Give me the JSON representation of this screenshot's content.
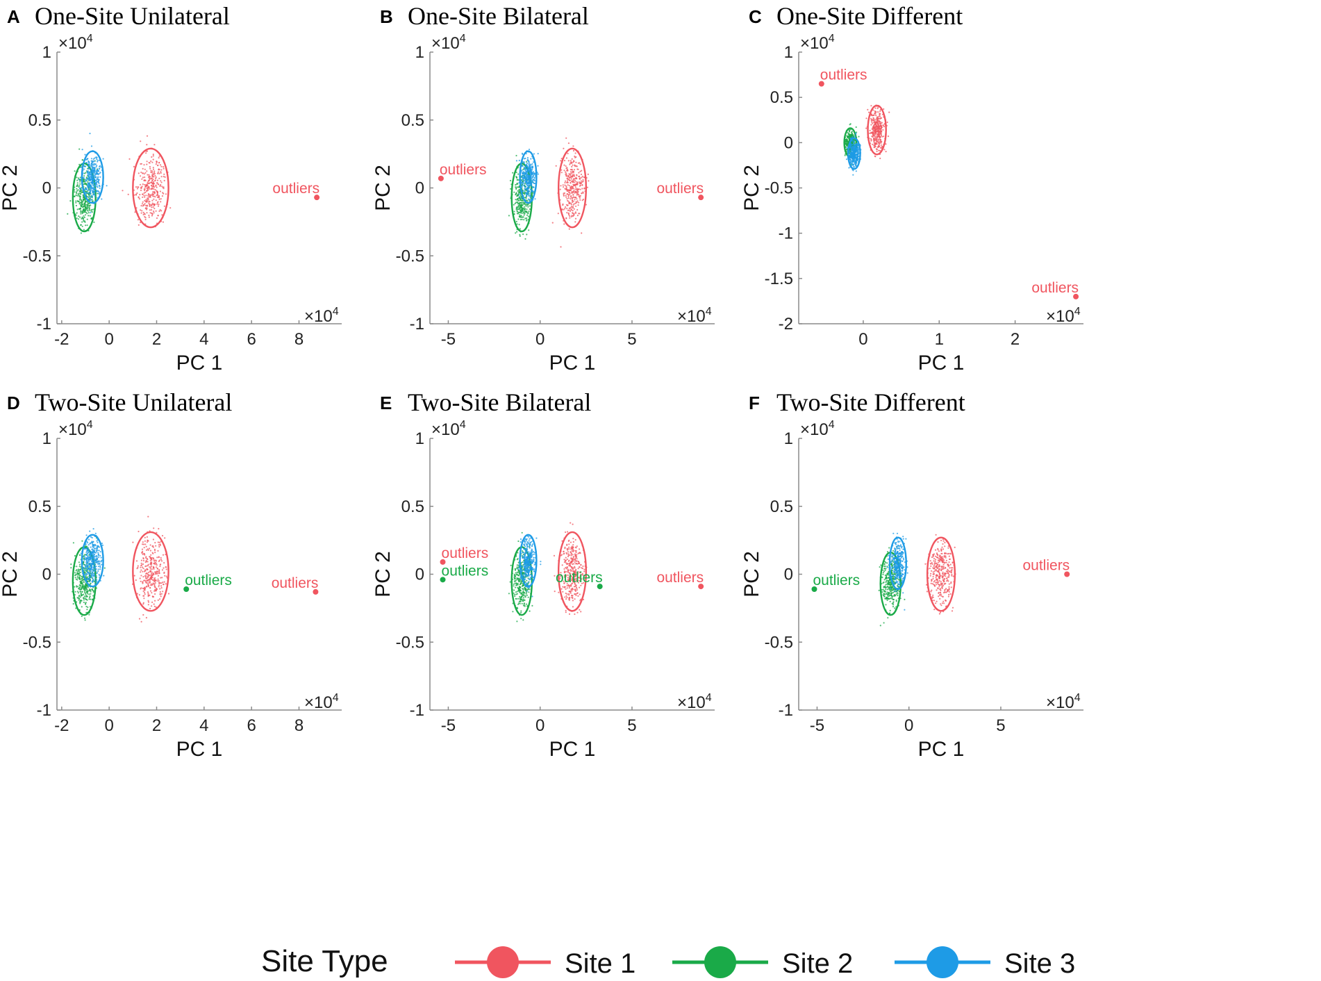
{
  "colors": {
    "site1": "#f0555f",
    "site2": "#1aaa48",
    "site3": "#1e9be6"
  },
  "legend": {
    "title": "Site Type",
    "items": [
      {
        "label": "Site 1",
        "color": "#f0555f"
      },
      {
        "label": "Site 2",
        "color": "#1aaa48"
      },
      {
        "label": "Site 3",
        "color": "#1e9be6"
      }
    ]
  },
  "chart_data": [
    {
      "type": "scatter",
      "letter": "A",
      "title": "One-Site Unilateral",
      "xlabel": "PC 1",
      "ylabel": "PC 2",
      "multiplier": "×10",
      "multiplier_exp": "4",
      "xlim": [
        -2.2,
        9.8
      ],
      "ylim": [
        -1,
        1
      ],
      "xticks": [
        -2,
        0,
        2,
        4,
        6,
        8
      ],
      "yticks": [
        -1,
        -0.5,
        0,
        0.5,
        1
      ],
      "clusters": [
        {
          "site": "Site 2",
          "cx": -1.05,
          "cy": -0.07,
          "rx": 0.48,
          "ry": 0.25,
          "color": "#1aaa48"
        },
        {
          "site": "Site 3",
          "cx": -0.7,
          "cy": 0.08,
          "rx": 0.45,
          "ry": 0.19,
          "color": "#1e9be6"
        },
        {
          "site": "Site 1",
          "cx": 1.75,
          "cy": 0.0,
          "rx": 0.75,
          "ry": 0.29,
          "color": "#f0555f"
        }
      ],
      "outliers": [
        {
          "x": 8.75,
          "y": -0.07,
          "label": "outliers",
          "color": "#f0555f"
        }
      ]
    },
    {
      "type": "scatter",
      "letter": "B",
      "title": "One-Site Bilateral",
      "xlabel": "PC 1",
      "ylabel": "PC 2",
      "multiplier": "×10",
      "multiplier_exp": "4",
      "xlim": [
        -6,
        9.5
      ],
      "ylim": [
        -1,
        1
      ],
      "xticks": [
        -5,
        0,
        5
      ],
      "yticks": [
        -1,
        -0.5,
        0,
        0.5,
        1
      ],
      "clusters": [
        {
          "site": "Site 2",
          "cx": -1.0,
          "cy": -0.07,
          "rx": 0.55,
          "ry": 0.25,
          "color": "#1aaa48"
        },
        {
          "site": "Site 3",
          "cx": -0.65,
          "cy": 0.08,
          "rx": 0.45,
          "ry": 0.19,
          "color": "#1e9be6"
        },
        {
          "site": "Site 1",
          "cx": 1.75,
          "cy": 0.0,
          "rx": 0.75,
          "ry": 0.29,
          "color": "#f0555f"
        }
      ],
      "outliers": [
        {
          "x": -5.4,
          "y": 0.07,
          "label": "outliers",
          "color": "#f0555f"
        },
        {
          "x": 8.75,
          "y": -0.07,
          "label": "outliers",
          "color": "#f0555f"
        }
      ]
    },
    {
      "type": "scatter",
      "letter": "C",
      "title": "One-Site Different",
      "xlabel": "PC 1",
      "ylabel": "PC 2",
      "multiplier": "×10",
      "multiplier_exp": "4",
      "xlim": [
        -0.85,
        2.9
      ],
      "ylim": [
        -2,
        1
      ],
      "xticks": [
        0,
        1,
        2
      ],
      "yticks": [
        -2,
        -1.5,
        -1,
        -0.5,
        0,
        0.5,
        1
      ],
      "clusters": [
        {
          "site": "Site 2",
          "cx": -0.17,
          "cy": 0.0,
          "rx": 0.08,
          "ry": 0.16,
          "color": "#1aaa48"
        },
        {
          "site": "Site 3",
          "cx": -0.12,
          "cy": -0.12,
          "rx": 0.08,
          "ry": 0.17,
          "color": "#1e9be6"
        },
        {
          "site": "Site 1",
          "cx": 0.18,
          "cy": 0.14,
          "rx": 0.12,
          "ry": 0.27,
          "color": "#f0555f"
        }
      ],
      "outliers": [
        {
          "x": -0.55,
          "y": 0.65,
          "label": "outliers",
          "color": "#f0555f"
        },
        {
          "x": 2.8,
          "y": -1.7,
          "label": "outliers",
          "color": "#f0555f"
        }
      ]
    },
    {
      "type": "scatter",
      "letter": "D",
      "title": "Two-Site Unilateral",
      "xlabel": "PC 1",
      "ylabel": "PC 2",
      "multiplier": "×10",
      "multiplier_exp": "4",
      "xlim": [
        -2.2,
        9.8
      ],
      "ylim": [
        -1,
        1
      ],
      "xticks": [
        -2,
        0,
        2,
        4,
        6,
        8
      ],
      "yticks": [
        -1,
        -0.5,
        0,
        0.5,
        1
      ],
      "clusters": [
        {
          "site": "Site 2",
          "cx": -1.05,
          "cy": -0.05,
          "rx": 0.48,
          "ry": 0.25,
          "color": "#1aaa48"
        },
        {
          "site": "Site 3",
          "cx": -0.7,
          "cy": 0.1,
          "rx": 0.45,
          "ry": 0.19,
          "color": "#1e9be6"
        },
        {
          "site": "Site 1",
          "cx": 1.75,
          "cy": 0.02,
          "rx": 0.75,
          "ry": 0.29,
          "color": "#f0555f"
        }
      ],
      "outliers": [
        {
          "x": 3.25,
          "y": -0.11,
          "label": "outliers",
          "color": "#1aaa48"
        },
        {
          "x": 8.7,
          "y": -0.13,
          "label": "outliers",
          "color": "#f0555f"
        }
      ]
    },
    {
      "type": "scatter",
      "letter": "E",
      "title": "Two-Site Bilateral",
      "xlabel": "PC 1",
      "ylabel": "PC 2",
      "multiplier": "×10",
      "multiplier_exp": "4",
      "xlim": [
        -6,
        9.5
      ],
      "ylim": [
        -1,
        1
      ],
      "xticks": [
        -5,
        0,
        5
      ],
      "yticks": [
        -1,
        -0.5,
        0,
        0.5,
        1
      ],
      "clusters": [
        {
          "site": "Site 2",
          "cx": -1.0,
          "cy": -0.05,
          "rx": 0.55,
          "ry": 0.25,
          "color": "#1aaa48"
        },
        {
          "site": "Site 3",
          "cx": -0.65,
          "cy": 0.1,
          "rx": 0.45,
          "ry": 0.19,
          "color": "#1e9be6"
        },
        {
          "site": "Site 1",
          "cx": 1.75,
          "cy": 0.02,
          "rx": 0.75,
          "ry": 0.29,
          "color": "#f0555f"
        }
      ],
      "outliers": [
        {
          "x": -5.3,
          "y": 0.09,
          "label": "outliers",
          "color": "#f0555f"
        },
        {
          "x": -5.3,
          "y": -0.04,
          "label": "outliers",
          "color": "#1aaa48"
        },
        {
          "x": 3.25,
          "y": -0.09,
          "label": "outliers",
          "color": "#1aaa48"
        },
        {
          "x": 8.75,
          "y": -0.09,
          "label": "outliers",
          "color": "#f0555f"
        }
      ]
    },
    {
      "type": "scatter",
      "letter": "F",
      "title": "Two-Site Different",
      "xlabel": "PC 1",
      "ylabel": "PC 2",
      "multiplier": "×10",
      "multiplier_exp": "4",
      "xlim": [
        -6,
        9.5
      ],
      "ylim": [
        -1,
        1
      ],
      "xticks": [
        -5,
        0,
        5
      ],
      "yticks": [
        -1,
        -0.5,
        0,
        0.5,
        1
      ],
      "clusters": [
        {
          "site": "Site 2",
          "cx": -1.0,
          "cy": -0.07,
          "rx": 0.55,
          "ry": 0.23,
          "color": "#1aaa48"
        },
        {
          "site": "Site 3",
          "cx": -0.6,
          "cy": 0.08,
          "rx": 0.45,
          "ry": 0.19,
          "color": "#1e9be6"
        },
        {
          "site": "Site 1",
          "cx": 1.75,
          "cy": 0.0,
          "rx": 0.75,
          "ry": 0.27,
          "color": "#f0555f"
        }
      ],
      "outliers": [
        {
          "x": -5.15,
          "y": -0.11,
          "label": "outliers",
          "color": "#1aaa48"
        },
        {
          "x": 8.6,
          "y": 0.0,
          "label": "outliers",
          "color": "#f0555f"
        }
      ]
    }
  ]
}
